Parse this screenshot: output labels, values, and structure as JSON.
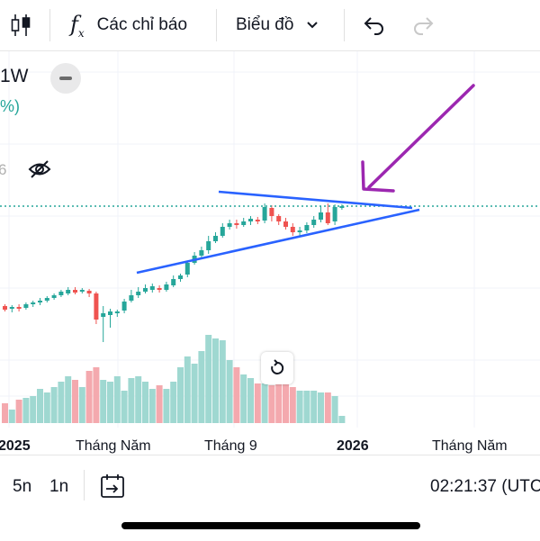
{
  "toolbar": {
    "indicators_label": "Các chỉ báo",
    "chart_type_label": "Biểu đồ"
  },
  "legend": {
    "interval": "1W",
    "change_fragment": "%)",
    "value_fragment": "6"
  },
  "x_axis": {
    "labels": [
      "2025",
      "Tháng Năm",
      "Tháng 9",
      "2026",
      "Tháng Năm"
    ]
  },
  "bottom_bar": {
    "range_5n": "5n",
    "range_1n": "1n",
    "clock": "02:21:37 (UTC"
  },
  "colors": {
    "up": "#26a69a",
    "down": "#ef5350",
    "trendline": "#2962ff",
    "arrow": "#9c27b0",
    "price_line": "#26a69a"
  },
  "chart_data": {
    "type": "candlestick",
    "interval": "1W",
    "x_tick_labels": [
      "2025",
      "Tháng Năm",
      "Tháng 9",
      "2026",
      "Tháng Năm"
    ],
    "annotations": [
      "symmetrical triangle (two converging trendlines)",
      "purple arrow pointing to apex"
    ]
  }
}
